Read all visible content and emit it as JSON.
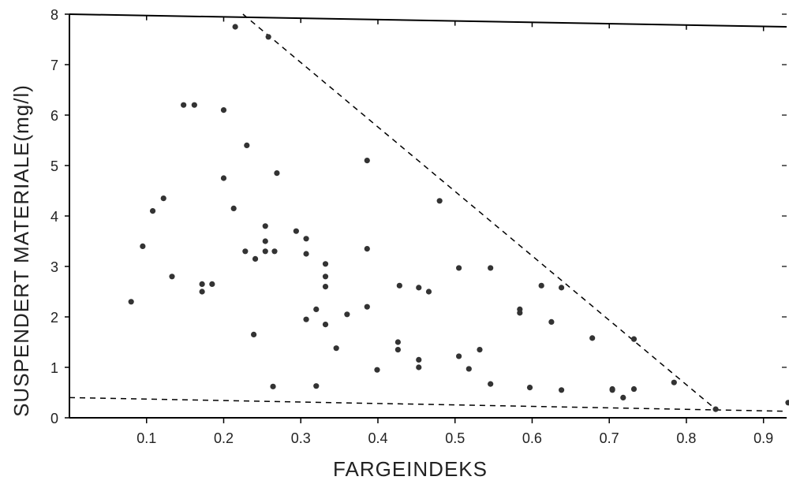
{
  "chart_data": {
    "type": "scatter",
    "xlabel": "FARGEINDEKS",
    "ylabel": "SUSPENDERT MATERIALE(mg/l)",
    "xlim": [
      0.0,
      0.93
    ],
    "ylim": [
      0,
      8
    ],
    "x_ticks": [
      0.1,
      0.2,
      0.3,
      0.4,
      0.5,
      0.6,
      0.7,
      0.8,
      0.9
    ],
    "x_tick_labels": [
      "0.1",
      "0.2",
      "0.3",
      "0.4",
      "0.5",
      "0.6",
      "0.7",
      "0.8",
      "0.9"
    ],
    "y_ticks": [
      0,
      1,
      2,
      3,
      4,
      5,
      6,
      7,
      8
    ],
    "y_tick_labels": [
      "0",
      "1",
      "2",
      "3",
      "4",
      "5",
      "6",
      "7",
      "8"
    ],
    "grid": false,
    "colors": {
      "point": "#333333",
      "axis": "#000000",
      "guide": "#000000"
    },
    "points": [
      {
        "x": 0.08,
        "y": 2.3
      },
      {
        "x": 0.095,
        "y": 3.4
      },
      {
        "x": 0.108,
        "y": 4.1
      },
      {
        "x": 0.122,
        "y": 4.35
      },
      {
        "x": 0.133,
        "y": 2.8
      },
      {
        "x": 0.148,
        "y": 6.2
      },
      {
        "x": 0.162,
        "y": 6.2
      },
      {
        "x": 0.172,
        "y": 2.65
      },
      {
        "x": 0.172,
        "y": 2.5
      },
      {
        "x": 0.185,
        "y": 2.65
      },
      {
        "x": 0.2,
        "y": 6.1
      },
      {
        "x": 0.2,
        "y": 4.75
      },
      {
        "x": 0.213,
        "y": 4.15
      },
      {
        "x": 0.215,
        "y": 7.75
      },
      {
        "x": 0.228,
        "y": 3.3
      },
      {
        "x": 0.23,
        "y": 5.4
      },
      {
        "x": 0.239,
        "y": 1.65
      },
      {
        "x": 0.241,
        "y": 3.15
      },
      {
        "x": 0.254,
        "y": 3.8
      },
      {
        "x": 0.254,
        "y": 3.5
      },
      {
        "x": 0.254,
        "y": 3.3
      },
      {
        "x": 0.258,
        "y": 7.55
      },
      {
        "x": 0.264,
        "y": 0.62
      },
      {
        "x": 0.266,
        "y": 3.3
      },
      {
        "x": 0.269,
        "y": 4.85
      },
      {
        "x": 0.294,
        "y": 3.7
      },
      {
        "x": 0.307,
        "y": 3.55
      },
      {
        "x": 0.307,
        "y": 3.25
      },
      {
        "x": 0.307,
        "y": 1.95
      },
      {
        "x": 0.32,
        "y": 2.15
      },
      {
        "x": 0.32,
        "y": 0.63
      },
      {
        "x": 0.332,
        "y": 3.05
      },
      {
        "x": 0.332,
        "y": 2.8
      },
      {
        "x": 0.332,
        "y": 2.6
      },
      {
        "x": 0.332,
        "y": 1.85
      },
      {
        "x": 0.346,
        "y": 1.38
      },
      {
        "x": 0.36,
        "y": 2.05
      },
      {
        "x": 0.386,
        "y": 5.1
      },
      {
        "x": 0.386,
        "y": 3.35
      },
      {
        "x": 0.386,
        "y": 2.2
      },
      {
        "x": 0.399,
        "y": 0.95
      },
      {
        "x": 0.426,
        "y": 1.5
      },
      {
        "x": 0.426,
        "y": 1.35
      },
      {
        "x": 0.428,
        "y": 2.62
      },
      {
        "x": 0.453,
        "y": 2.58
      },
      {
        "x": 0.453,
        "y": 1.15
      },
      {
        "x": 0.453,
        "y": 1.0
      },
      {
        "x": 0.466,
        "y": 2.5
      },
      {
        "x": 0.48,
        "y": 4.3
      },
      {
        "x": 0.505,
        "y": 2.97
      },
      {
        "x": 0.505,
        "y": 1.22
      },
      {
        "x": 0.518,
        "y": 0.97
      },
      {
        "x": 0.532,
        "y": 1.35
      },
      {
        "x": 0.546,
        "y": 2.97
      },
      {
        "x": 0.546,
        "y": 0.67
      },
      {
        "x": 0.584,
        "y": 2.15
      },
      {
        "x": 0.584,
        "y": 2.08
      },
      {
        "x": 0.597,
        "y": 0.6
      },
      {
        "x": 0.612,
        "y": 2.62
      },
      {
        "x": 0.625,
        "y": 1.9
      },
      {
        "x": 0.638,
        "y": 2.58
      },
      {
        "x": 0.638,
        "y": 0.55
      },
      {
        "x": 0.678,
        "y": 1.58
      },
      {
        "x": 0.704,
        "y": 0.57
      },
      {
        "x": 0.704,
        "y": 0.55
      },
      {
        "x": 0.718,
        "y": 0.4
      },
      {
        "x": 0.732,
        "y": 0.57
      },
      {
        "x": 0.732,
        "y": 1.56
      },
      {
        "x": 0.784,
        "y": 0.7
      },
      {
        "x": 0.838,
        "y": 0.17
      },
      {
        "x": 0.932,
        "y": 0.3
      }
    ],
    "reference_lines": [
      {
        "style": "dashed",
        "from": [
          0.225,
          8.0
        ],
        "to": [
          0.838,
          0.17
        ]
      },
      {
        "style": "dashed",
        "from": [
          0.0,
          0.4
        ],
        "to": [
          0.93,
          0.13
        ]
      }
    ]
  }
}
